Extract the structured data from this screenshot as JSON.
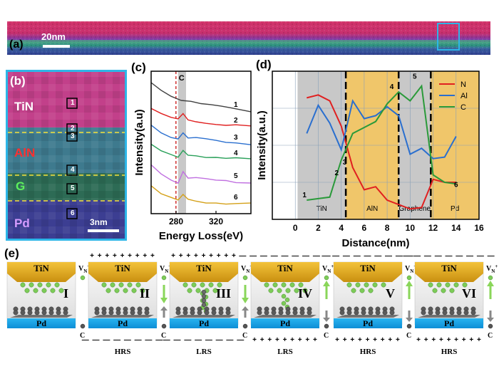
{
  "panel_a": {
    "label": "(a)",
    "scale_bar": "20nm"
  },
  "panel_b": {
    "label": "(b)",
    "layers": [
      "TiN",
      "AlN",
      "G",
      "Pd"
    ],
    "layer_colors": {
      "TiN": "#ffffff",
      "AlN": "#e53030",
      "G": "#4ad64a",
      "Pd": "#c080ff"
    },
    "boxes": [
      "1",
      "2",
      "3",
      "4",
      "5",
      "6"
    ],
    "scale_bar": "3nm"
  },
  "panel_c": {
    "label": "(c)",
    "marker": "C"
  },
  "panel_d": {
    "label": "(d)",
    "regions": [
      "TiN",
      "AlN",
      "Graphene",
      "Pd"
    ],
    "points": [
      "1",
      "2",
      "3",
      "4",
      "5",
      "6"
    ]
  },
  "panel_e": {
    "label": "(e)",
    "cells": [
      {
        "top": "TiN",
        "bottom": "Pd",
        "numeral": "I",
        "top_signs": "",
        "bottom_signs": "",
        "state": "",
        "arrow_up": false
      },
      {
        "top": "TiN",
        "bottom": "Pd",
        "numeral": "II",
        "top_signs": "+ + + + + + + + +",
        "bottom_signs": "— — — — — — — —",
        "state": "HRS",
        "arrow_up": false
      },
      {
        "top": "TiN",
        "bottom": "Pd",
        "numeral": "III",
        "top_signs": "+ + + + + + + + +",
        "bottom_signs": "— — — — — — — —",
        "state": "LRS",
        "arrow_up": false
      },
      {
        "top": "TiN",
        "bottom": "Pd",
        "numeral": "IV",
        "top_signs": "— — — — — — — — —",
        "bottom_signs": "+ + + + + + + + +",
        "state": "LRS",
        "arrow_up": true
      },
      {
        "top": "TiN",
        "bottom": "Pd",
        "numeral": "V",
        "top_signs": "— — — — — — — — —",
        "bottom_signs": "+ + + + + + + + +",
        "state": "HRS",
        "arrow_up": true
      },
      {
        "top": "TiN",
        "bottom": "Pd",
        "numeral": "VI",
        "top_signs": "— — — — — — — — —",
        "bottom_signs": "+ + + + + + + + +",
        "state": "HRS",
        "arrow_up": true
      }
    ],
    "vn_label": "V",
    "vn_sub": "N",
    "vn_sup": "+",
    "c_label": "C"
  },
  "chart_data": [
    {
      "type": "line",
      "title": "",
      "xlabel": "Energy Loss(eV)",
      "ylabel": "Intensity(a.u)",
      "xlim": [
        255,
        355
      ],
      "xticks": [
        280,
        320
      ],
      "marker_x": [
        282,
        290
      ],
      "series": [
        {
          "name": "1",
          "color": "#404040",
          "x": [
            255,
            265,
            275,
            285,
            295,
            305,
            315,
            325,
            335,
            345,
            355
          ],
          "y": [
            0.92,
            0.87,
            0.83,
            0.8,
            0.79,
            0.77,
            0.76,
            0.75,
            0.74,
            0.73,
            0.72
          ]
        },
        {
          "name": "2",
          "color": "#e02020",
          "x": [
            255,
            265,
            275,
            282,
            287,
            292,
            300,
            310,
            320,
            330,
            340,
            355
          ],
          "y": [
            0.74,
            0.7,
            0.67,
            0.66,
            0.7,
            0.66,
            0.65,
            0.64,
            0.63,
            0.62,
            0.62,
            0.61
          ]
        },
        {
          "name": "3",
          "color": "#2a6fcf",
          "x": [
            255,
            265,
            275,
            282,
            287,
            292,
            300,
            310,
            320,
            330,
            340,
            355
          ],
          "y": [
            0.62,
            0.57,
            0.54,
            0.53,
            0.57,
            0.53,
            0.53,
            0.52,
            0.51,
            0.5,
            0.5,
            0.49
          ]
        },
        {
          "name": "4",
          "color": "#2aa05a",
          "x": [
            255,
            265,
            275,
            282,
            287,
            292,
            300,
            310,
            320,
            330,
            340,
            355
          ],
          "y": [
            0.49,
            0.44,
            0.41,
            0.39,
            0.44,
            0.41,
            0.41,
            0.4,
            0.4,
            0.39,
            0.39,
            0.38
          ]
        },
        {
          "name": "5",
          "color": "#c070e0",
          "x": [
            255,
            265,
            275,
            282,
            287,
            292,
            300,
            310,
            320,
            330,
            340,
            355
          ],
          "y": [
            0.34,
            0.28,
            0.24,
            0.22,
            0.3,
            0.25,
            0.25,
            0.24,
            0.23,
            0.23,
            0.22,
            0.22
          ]
        },
        {
          "name": "6",
          "color": "#d4a017",
          "x": [
            255,
            265,
            275,
            282,
            287,
            292,
            300,
            310,
            320,
            330,
            340,
            355
          ],
          "y": [
            0.2,
            0.14,
            0.11,
            0.09,
            0.13,
            0.1,
            0.09,
            0.08,
            0.08,
            0.07,
            0.07,
            0.07
          ]
        }
      ]
    },
    {
      "type": "line",
      "title": "",
      "xlabel": "Distance(nm)",
      "ylabel": "Intensity(a.u.)",
      "xlim": [
        -2,
        16
      ],
      "xticks": [
        0,
        2,
        4,
        6,
        8,
        10,
        12,
        14,
        16
      ],
      "region_bounds": [
        0.2,
        4.4,
        9.0,
        11.8,
        16
      ],
      "region_colors": [
        "#c8c8c8",
        "#f0c66a",
        "#c8c8c8",
        "#f0c66a"
      ],
      "dashed_x": [
        4.4,
        9.0,
        11.8
      ],
      "series": [
        {
          "name": "N",
          "color": "#e02020",
          "x": [
            1,
            2,
            3,
            4,
            5,
            6,
            7,
            8,
            9,
            10,
            11,
            12,
            13,
            14
          ],
          "y": [
            0.82,
            0.84,
            0.8,
            0.63,
            0.35,
            0.2,
            0.22,
            0.13,
            0.1,
            0.07,
            0.08,
            0.27,
            0.25,
            0.25
          ]
        },
        {
          "name": "Al",
          "color": "#2a6fcf",
          "x": [
            1,
            2,
            3,
            4,
            5,
            6,
            7,
            8,
            9,
            10,
            11,
            12,
            13,
            14
          ],
          "y": [
            0.58,
            0.77,
            0.65,
            0.47,
            0.8,
            0.68,
            0.7,
            0.76,
            0.7,
            0.44,
            0.48,
            0.41,
            0.42,
            0.56
          ]
        },
        {
          "name": "C",
          "color": "#2a9a3a",
          "x": [
            1,
            2,
            3,
            4,
            5,
            6,
            7,
            8,
            9,
            10,
            11,
            12,
            13,
            14
          ],
          "y": [
            0.13,
            0.14,
            0.15,
            0.4,
            0.58,
            0.62,
            0.66,
            0.78,
            0.86,
            0.8,
            0.9,
            0.3,
            0.25,
            0.24
          ]
        }
      ],
      "point_labels": [
        {
          "text": "1",
          "x": 1.0,
          "y": 0.13
        },
        {
          "text": "2",
          "x": 3.8,
          "y": 0.28
        },
        {
          "text": "3",
          "x": 4.5,
          "y": 0.35
        },
        {
          "text": "4",
          "x": 8.6,
          "y": 0.86
        },
        {
          "text": "5",
          "x": 10.6,
          "y": 0.93
        },
        {
          "text": "6",
          "x": 14.2,
          "y": 0.2
        }
      ]
    }
  ]
}
